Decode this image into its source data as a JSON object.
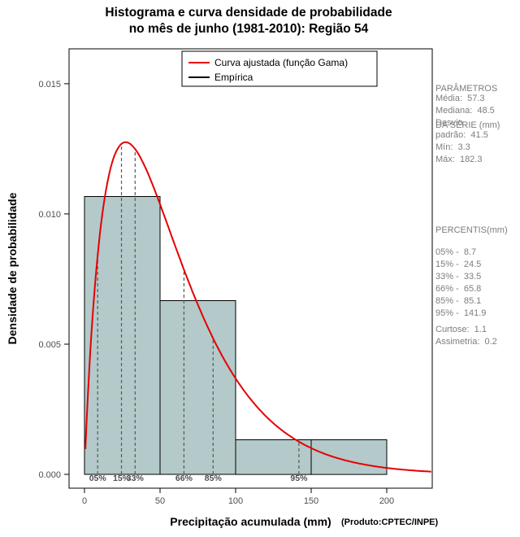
{
  "title": {
    "line1": "Histograma e curva densidade de probabilidade",
    "line2": "no mês de junho (1981-2010): Região 54"
  },
  "chart_data": {
    "type": "bar",
    "subtype": "histogram-with-density-curve",
    "title": "Histograma e curva densidade de probabilidade no mês de junho (1981-2010): Região 54",
    "xlabel": "Precipitação acumulada (mm)",
    "source_note": "(Produto:CPTEC/INPE)",
    "ylabel": "Densidade de probabilidade",
    "xlim": [
      -10.2,
      230.1
    ],
    "ylim": [
      -0.00053,
      0.01634
    ],
    "x_ticks": [
      0,
      50,
      100,
      150,
      200
    ],
    "y_ticks": [
      0,
      0.005,
      0.01,
      0.015
    ],
    "y_tick_labels": [
      "0.000",
      "0.005",
      "0.010",
      "0.015"
    ],
    "grid": false,
    "histogram": {
      "bin_edges": [
        0,
        50,
        100,
        150,
        200
      ],
      "densities": [
        0.01067,
        0.00667,
        0.00133,
        0.00133
      ],
      "fill": "#b3c9ca",
      "stroke": "#000000"
    },
    "curve": {
      "distribution": "gamma",
      "mean": 57.3,
      "sd": 41.5,
      "color": "#e60000"
    },
    "legend": {
      "position": "top-inside",
      "items": [
        {
          "label": "Curva ajustada (função Gama)",
          "color": "#e60000"
        },
        {
          "label": "Empírica",
          "color": "#000000"
        }
      ]
    },
    "percentile_lines": [
      {
        "label": "05%",
        "x": 8.7
      },
      {
        "label": "15%",
        "x": 24.5
      },
      {
        "label": "33%",
        "x": 33.5
      },
      {
        "label": "66%",
        "x": 65.8
      },
      {
        "label": "85%",
        "x": 85.1
      },
      {
        "label": "95%",
        "x": 141.9
      }
    ]
  },
  "side_panel": {
    "params_header_line1": "PARÂMETROS",
    "params_header_line2": "DA SÉRIE (mm)",
    "params": [
      "Média:  57.3",
      "Mediana:  48.5",
      "Desvio",
      "padrão:  41.5",
      "Mín:  3.3",
      "Máx:  182.3"
    ],
    "percentis_header": "PERCENTIS(mm)",
    "percentis": [
      "05% -  8.7",
      "15% -  24.5",
      "33% -  33.5",
      "66% -  65.8",
      "85% -  85.1",
      "95% -  141.9"
    ],
    "stats": [
      "Curtose:  1.1",
      "Assimetria:  0.2"
    ]
  },
  "colors": {
    "bar_fill": "#b3c9ca",
    "curve_red": "#e60000",
    "dashed_gray": "#595959",
    "tick_text": "#4d4d4d",
    "panel_text": "#7d7d7d"
  }
}
